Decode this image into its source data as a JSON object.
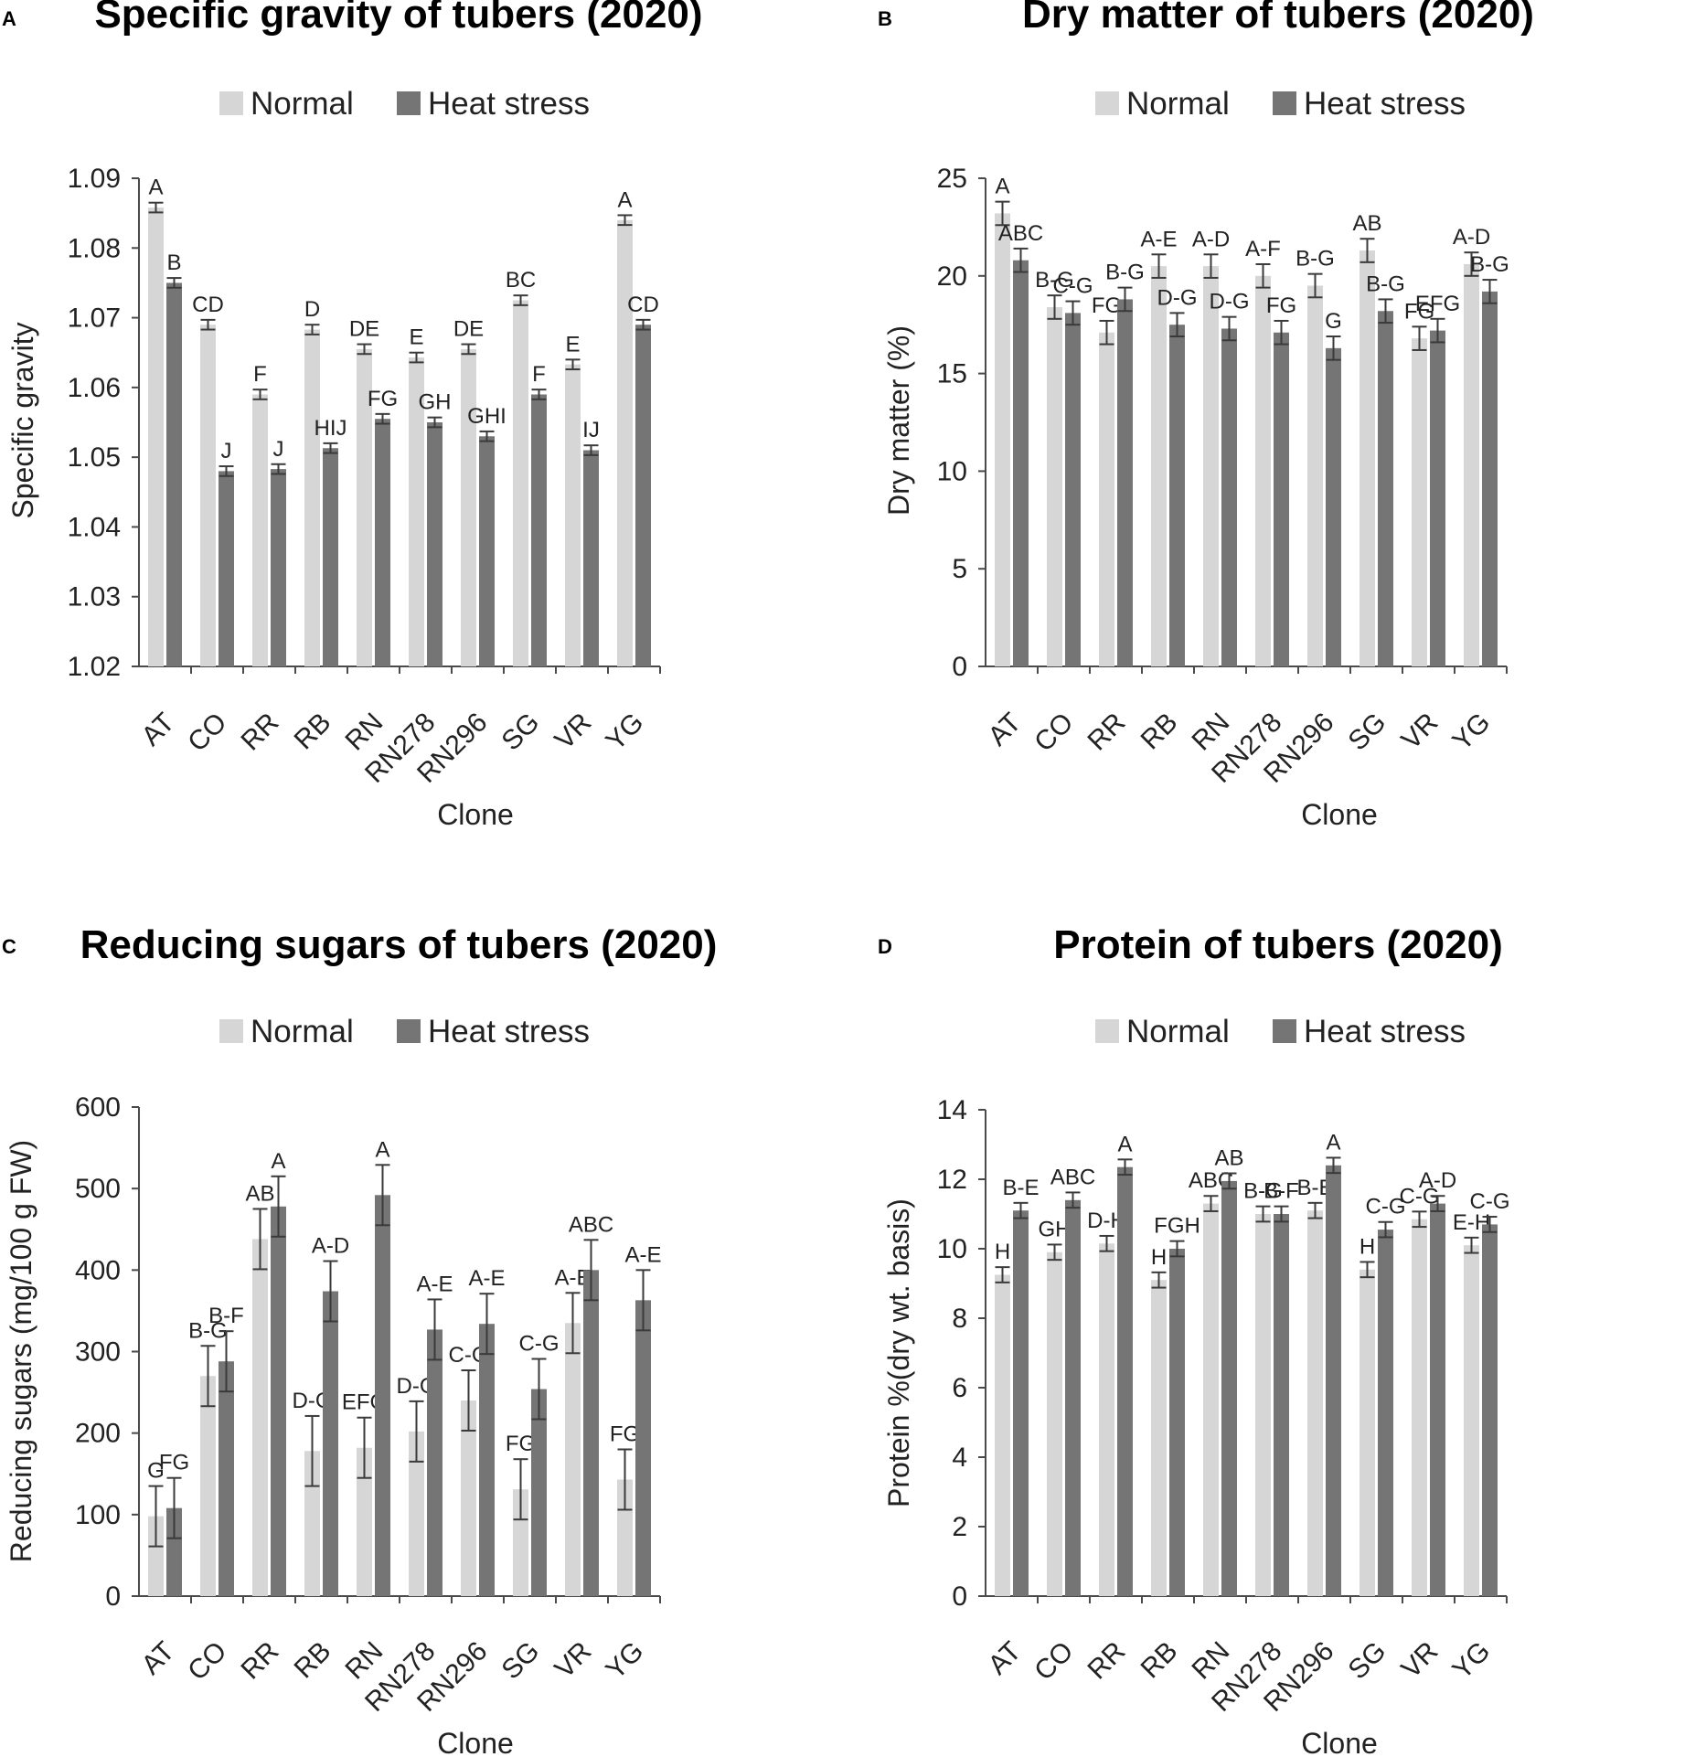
{
  "colors": {
    "normal": "#d6d6d6",
    "heat": "#757575",
    "axis": "#4a4a4a",
    "error": "#3a3a3a"
  },
  "legend": {
    "normal": "Normal",
    "heat": "Heat stress"
  },
  "chart_data": [
    {
      "panel": "A",
      "type": "bar",
      "title": "Specific gravity of tubers (2020)",
      "xlabel": "Clone",
      "ylabel": "Specific gravity",
      "ylim": [
        1.02,
        1.09
      ],
      "yticks": [
        "1.02",
        "1.03",
        "1.04",
        "1.05",
        "1.06",
        "1.07",
        "1.08",
        "1.09"
      ],
      "categories": [
        "AT",
        "CO",
        "RR",
        "RB",
        "RN",
        "RN278",
        "RN296",
        "SG",
        "VR",
        "YG"
      ],
      "series": [
        {
          "name": "Normal",
          "values": [
            1.0858,
            1.069,
            1.059,
            1.0683,
            1.0655,
            1.0643,
            1.0655,
            1.0725,
            1.0633,
            1.084
          ],
          "errors": [
            0.0007,
            0.0007,
            0.0007,
            0.0007,
            0.0007,
            0.0007,
            0.0007,
            0.0007,
            0.0007,
            0.0007
          ],
          "labels": [
            "A",
            "CD",
            "F",
            "D",
            "DE",
            "E",
            "DE",
            "BC",
            "E",
            "A"
          ]
        },
        {
          "name": "Heat stress",
          "values": [
            1.075,
            1.048,
            1.0483,
            1.0513,
            1.0555,
            1.055,
            1.053,
            1.059,
            1.051,
            1.069
          ],
          "errors": [
            0.0007,
            0.0007,
            0.0007,
            0.0007,
            0.0007,
            0.0007,
            0.0007,
            0.0007,
            0.0007,
            0.0007
          ],
          "labels": [
            "B",
            "J",
            "J",
            "HIJ",
            "FG",
            "GH",
            "GHI",
            "F",
            "IJ",
            "CD"
          ]
        }
      ]
    },
    {
      "panel": "B",
      "type": "bar",
      "title": "Dry matter of tubers (2020)",
      "xlabel": "Clone",
      "ylabel": "Dry matter (%)",
      "ylim": [
        0,
        25
      ],
      "yticks": [
        "0",
        "5",
        "10",
        "15",
        "20",
        "25"
      ],
      "categories": [
        "AT",
        "CO",
        "RR",
        "RB",
        "RN",
        "RN278",
        "RN296",
        "SG",
        "VR",
        "YG"
      ],
      "series": [
        {
          "name": "Normal",
          "values": [
            23.2,
            18.4,
            17.1,
            20.5,
            20.5,
            20.0,
            19.5,
            21.3,
            16.8,
            20.6
          ],
          "errors": [
            0.6,
            0.6,
            0.6,
            0.6,
            0.6,
            0.6,
            0.6,
            0.6,
            0.6,
            0.6
          ],
          "labels": [
            "A",
            "B-G",
            "FG",
            "A-E",
            "A-D",
            "A-F",
            "B-G",
            "AB",
            "FG",
            "A-D"
          ]
        },
        {
          "name": "Heat stress",
          "values": [
            20.8,
            18.1,
            18.8,
            17.5,
            17.3,
            17.1,
            16.3,
            18.2,
            17.2,
            19.2
          ],
          "errors": [
            0.6,
            0.6,
            0.6,
            0.6,
            0.6,
            0.6,
            0.6,
            0.6,
            0.6,
            0.6
          ],
          "labels": [
            "ABC",
            "C-G",
            "B-G",
            "D-G",
            "D-G",
            "FG",
            "G",
            "B-G",
            "EFG",
            "B-G"
          ]
        }
      ]
    },
    {
      "panel": "C",
      "type": "bar",
      "title": "Reducing sugars of tubers (2020)",
      "xlabel": "Clone",
      "ylabel": "Reducing sugars (mg/100 g FW)",
      "ylim": [
        0,
        600
      ],
      "yticks": [
        "0",
        "100",
        "200",
        "300",
        "400",
        "500",
        "600"
      ],
      "categories": [
        "AT",
        "CO",
        "RR",
        "RB",
        "RN",
        "RN278",
        "RN296",
        "SG",
        "VR",
        "YG"
      ],
      "series": [
        {
          "name": "Normal",
          "values": [
            98,
            270,
            438,
            178,
            182,
            202,
            240,
            131,
            335,
            143
          ],
          "errors": [
            37,
            37,
            37,
            43,
            37,
            37,
            37,
            37,
            37,
            37
          ],
          "labels": [
            "G",
            "B-G",
            "AB",
            "D-G",
            "EFG",
            "D-G",
            "C-G",
            "FG",
            "A-E",
            "FG"
          ]
        },
        {
          "name": "Heat stress",
          "values": [
            108,
            288,
            478,
            374,
            492,
            327,
            334,
            254,
            400,
            363
          ],
          "errors": [
            37,
            37,
            37,
            37,
            37,
            37,
            37,
            37,
            37,
            37
          ],
          "labels": [
            "FG",
            "B-F",
            "A",
            "A-D",
            "A",
            "A-E",
            "A-E",
            "C-G",
            "ABC",
            "A-E"
          ]
        }
      ]
    },
    {
      "panel": "D",
      "type": "bar",
      "title": "Protein of tubers (2020)",
      "xlabel": "Clone",
      "ylabel": "Protein %(dry wt. basis)",
      "ylim": [
        0,
        14
      ],
      "yticks": [
        "0",
        "2",
        "4",
        "6",
        "8",
        "10",
        "12",
        "14"
      ],
      "categories": [
        "AT",
        "CO",
        "RR",
        "RB",
        "RN",
        "RN278",
        "RN296",
        "SG",
        "VR",
        "YG"
      ],
      "series": [
        {
          "name": "Normal",
          "values": [
            9.25,
            9.9,
            10.15,
            9.1,
            11.3,
            11.0,
            11.1,
            9.4,
            10.85,
            10.1
          ],
          "errors": [
            0.22,
            0.22,
            0.22,
            0.22,
            0.22,
            0.22,
            0.22,
            0.22,
            0.22,
            0.22
          ],
          "labels": [
            "H",
            "GH",
            "D-H",
            "H",
            "ABC",
            "B-G",
            "B-E",
            "H",
            "C-G",
            "E-H"
          ]
        },
        {
          "name": "Heat stress",
          "values": [
            11.1,
            11.4,
            12.35,
            10.0,
            11.95,
            11.0,
            12.4,
            10.55,
            11.3,
            10.7
          ],
          "errors": [
            0.22,
            0.22,
            0.22,
            0.22,
            0.22,
            0.22,
            0.22,
            0.22,
            0.22,
            0.22
          ],
          "labels": [
            "B-E",
            "ABC",
            "A",
            "FGH",
            "AB",
            "B-F",
            "A",
            "C-G",
            "A-D",
            "C-G"
          ]
        }
      ]
    }
  ]
}
